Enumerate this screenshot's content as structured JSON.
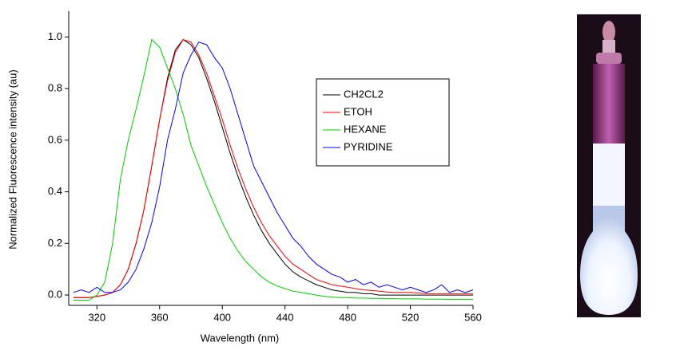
{
  "chart_data": {
    "type": "line",
    "xlabel": "Wavelength (nm)",
    "ylabel": "Normalized Fluorescence intensity (au)",
    "x": [
      305,
      310,
      315,
      320,
      325,
      330,
      335,
      340,
      345,
      350,
      355,
      360,
      365,
      370,
      375,
      380,
      385,
      390,
      395,
      400,
      405,
      410,
      415,
      420,
      425,
      430,
      435,
      440,
      445,
      450,
      455,
      460,
      465,
      470,
      475,
      480,
      485,
      490,
      495,
      500,
      505,
      510,
      515,
      520,
      525,
      530,
      535,
      540,
      545,
      550,
      555,
      560
    ],
    "series": [
      {
        "name": "CH2CL2",
        "color": "#000000",
        "values": [
          -0.01,
          -0.01,
          -0.01,
          -0.005,
          0,
          0.01,
          0.04,
          0.1,
          0.2,
          0.33,
          0.5,
          0.68,
          0.84,
          0.95,
          0.99,
          0.97,
          0.92,
          0.84,
          0.75,
          0.65,
          0.55,
          0.46,
          0.38,
          0.31,
          0.25,
          0.2,
          0.16,
          0.12,
          0.09,
          0.07,
          0.055,
          0.04,
          0.03,
          0.02,
          0.015,
          0.01,
          0.01,
          0.005,
          0.005,
          0,
          0,
          0,
          0,
          0,
          0,
          0,
          0,
          0,
          0,
          0,
          0,
          0
        ]
      },
      {
        "name": "ETOH",
        "color": "#ff0000",
        "values": [
          -0.01,
          -0.01,
          -0.01,
          -0.005,
          0,
          0.01,
          0.04,
          0.1,
          0.2,
          0.33,
          0.5,
          0.68,
          0.83,
          0.94,
          0.99,
          0.98,
          0.93,
          0.86,
          0.77,
          0.68,
          0.58,
          0.49,
          0.41,
          0.34,
          0.28,
          0.23,
          0.19,
          0.15,
          0.12,
          0.1,
          0.08,
          0.06,
          0.05,
          0.04,
          0.035,
          0.03,
          0.025,
          0.02,
          0.018,
          0.015,
          0.012,
          0.01,
          0.01,
          0.01,
          0.008,
          0.005,
          0.005,
          0.005,
          0.005,
          0.005,
          0.005,
          0.005
        ]
      },
      {
        "name": "HEXANE",
        "color": "#00cc00",
        "values": [
          -0.02,
          -0.02,
          -0.02,
          0,
          0.05,
          0.2,
          0.45,
          0.6,
          0.72,
          0.85,
          0.99,
          0.96,
          0.88,
          0.8,
          0.7,
          0.58,
          0.5,
          0.42,
          0.35,
          0.28,
          0.22,
          0.17,
          0.13,
          0.1,
          0.07,
          0.05,
          0.035,
          0.025,
          0.015,
          0.01,
          0.005,
          0,
          -0.005,
          -0.008,
          -0.01,
          -0.01,
          -0.012,
          -0.012,
          -0.013,
          -0.013,
          -0.014,
          -0.014,
          -0.015,
          -0.015,
          -0.015,
          -0.016,
          -0.016,
          -0.016,
          -0.017,
          -0.017,
          -0.017,
          -0.017
        ]
      },
      {
        "name": "PYRIDINE",
        "color": "#0000ff",
        "values": [
          0.01,
          0.02,
          0.01,
          0.03,
          0.01,
          0.01,
          0.02,
          0.05,
          0.1,
          0.18,
          0.28,
          0.42,
          0.6,
          0.72,
          0.86,
          0.93,
          0.98,
          0.97,
          0.92,
          0.88,
          0.8,
          0.7,
          0.6,
          0.5,
          0.44,
          0.38,
          0.32,
          0.27,
          0.22,
          0.19,
          0.15,
          0.12,
          0.1,
          0.08,
          0.07,
          0.05,
          0.06,
          0.04,
          0.05,
          0.03,
          0.04,
          0.03,
          0.02,
          0.03,
          0.02,
          0.01,
          0.02,
          0.04,
          0.01,
          0.02,
          0.01,
          0.02
        ]
      }
    ],
    "xlim": [
      302,
      560
    ],
    "xticks": [
      320,
      360,
      400,
      440,
      480,
      520,
      560
    ],
    "ylim": [
      -0.04,
      1.1
    ],
    "yticks": [
      {
        "value": 0,
        "label": "0.0"
      },
      0.2,
      0.4,
      0.6,
      0.8,
      {
        "value": 1,
        "label": "1.0"
      }
    ],
    "legend": "center-right",
    "grid": false
  }
}
